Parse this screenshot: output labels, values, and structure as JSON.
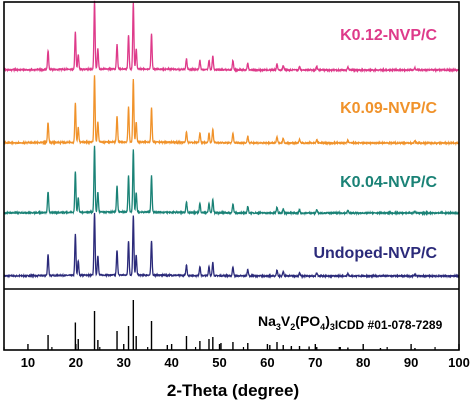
{
  "chart_data": {
    "type": "line",
    "title": "",
    "xlabel": "2-Theta (degree)",
    "ylabel": "",
    "xlim": [
      5,
      100
    ],
    "x_ticks": [
      10,
      20,
      30,
      40,
      50,
      60,
      70,
      80,
      90,
      100
    ],
    "grid": false,
    "legend": "inline labels beside each trace",
    "reference": {
      "label_main": "Na",
      "label_sub1": "3",
      "label_mid1": "V",
      "label_sub2": "2",
      "label_mid2": "(PO",
      "label_sub3": "4",
      "label_mid3": ")",
      "label_sub4": "3",
      "label_code": "ICDD #01-078-7289",
      "color": "#000000",
      "peaks": [
        {
          "x": 14.2,
          "h": 0.3
        },
        {
          "x": 19.9,
          "h": 0.55
        },
        {
          "x": 20.5,
          "h": 0.22
        },
        {
          "x": 23.9,
          "h": 0.78
        },
        {
          "x": 24.6,
          "h": 0.2
        },
        {
          "x": 28.6,
          "h": 0.38
        },
        {
          "x": 31.0,
          "h": 0.48
        },
        {
          "x": 32.0,
          "h": 1.0
        },
        {
          "x": 32.6,
          "h": 0.28
        },
        {
          "x": 35.8,
          "h": 0.58
        },
        {
          "x": 39.1,
          "h": 0.1
        },
        {
          "x": 43.1,
          "h": 0.28
        },
        {
          "x": 45.9,
          "h": 0.18
        },
        {
          "x": 47.8,
          "h": 0.22
        },
        {
          "x": 48.6,
          "h": 0.26
        },
        {
          "x": 50.3,
          "h": 0.14
        },
        {
          "x": 52.8,
          "h": 0.16
        },
        {
          "x": 55.9,
          "h": 0.14
        },
        {
          "x": 60.5,
          "h": 0.1
        },
        {
          "x": 62.0,
          "h": 0.16
        },
        {
          "x": 63.3,
          "h": 0.1
        },
        {
          "x": 65.0,
          "h": 0.08
        },
        {
          "x": 66.7,
          "h": 0.08
        },
        {
          "x": 68.7,
          "h": 0.07
        },
        {
          "x": 70.3,
          "h": 0.06
        },
        {
          "x": 75.2,
          "h": 0.06
        },
        {
          "x": 76.8,
          "h": 0.05
        },
        {
          "x": 83.6,
          "h": 0.04
        },
        {
          "x": 90.8,
          "h": 0.04
        }
      ]
    },
    "series": [
      {
        "name": "Undoped-NVP/C",
        "color": "#2b2a7a",
        "peaks": [
          {
            "x": 14.2,
            "h": 0.32
          },
          {
            "x": 19.9,
            "h": 0.62
          },
          {
            "x": 20.5,
            "h": 0.22
          },
          {
            "x": 23.9,
            "h": 0.95
          },
          {
            "x": 24.6,
            "h": 0.3
          },
          {
            "x": 28.6,
            "h": 0.38
          },
          {
            "x": 31.0,
            "h": 0.52
          },
          {
            "x": 32.0,
            "h": 0.9
          },
          {
            "x": 32.6,
            "h": 0.3
          },
          {
            "x": 35.8,
            "h": 0.52
          },
          {
            "x": 43.1,
            "h": 0.16
          },
          {
            "x": 45.9,
            "h": 0.14
          },
          {
            "x": 47.8,
            "h": 0.14
          },
          {
            "x": 48.6,
            "h": 0.2
          },
          {
            "x": 52.8,
            "h": 0.14
          },
          {
            "x": 55.9,
            "h": 0.1
          },
          {
            "x": 62.0,
            "h": 0.09
          },
          {
            "x": 63.3,
            "h": 0.07
          },
          {
            "x": 66.7,
            "h": 0.05
          },
          {
            "x": 70.3,
            "h": 0.05
          },
          {
            "x": 76.8,
            "h": 0.04
          },
          {
            "x": 90.8,
            "h": 0.03
          }
        ]
      },
      {
        "name": "K0.04-NVP/C",
        "color": "#1a8276",
        "peaks": [
          {
            "x": 14.2,
            "h": 0.32
          },
          {
            "x": 19.9,
            "h": 0.62
          },
          {
            "x": 20.5,
            "h": 0.22
          },
          {
            "x": 23.9,
            "h": 1.0
          },
          {
            "x": 24.6,
            "h": 0.3
          },
          {
            "x": 28.6,
            "h": 0.4
          },
          {
            "x": 31.0,
            "h": 0.55
          },
          {
            "x": 32.0,
            "h": 0.95
          },
          {
            "x": 32.6,
            "h": 0.3
          },
          {
            "x": 35.8,
            "h": 0.55
          },
          {
            "x": 43.1,
            "h": 0.16
          },
          {
            "x": 45.9,
            "h": 0.14
          },
          {
            "x": 47.8,
            "h": 0.14
          },
          {
            "x": 48.6,
            "h": 0.2
          },
          {
            "x": 52.8,
            "h": 0.14
          },
          {
            "x": 55.9,
            "h": 0.1
          },
          {
            "x": 62.0,
            "h": 0.09
          },
          {
            "x": 63.3,
            "h": 0.07
          },
          {
            "x": 66.7,
            "h": 0.05
          },
          {
            "x": 70.3,
            "h": 0.05
          },
          {
            "x": 76.8,
            "h": 0.04
          },
          {
            "x": 90.8,
            "h": 0.03
          }
        ]
      },
      {
        "name": "K0.09-NVP/C",
        "color": "#f0922a",
        "peaks": [
          {
            "x": 14.2,
            "h": 0.3
          },
          {
            "x": 19.9,
            "h": 0.58
          },
          {
            "x": 20.5,
            "h": 0.22
          },
          {
            "x": 23.9,
            "h": 0.98
          },
          {
            "x": 24.6,
            "h": 0.3
          },
          {
            "x": 28.6,
            "h": 0.38
          },
          {
            "x": 31.0,
            "h": 0.52
          },
          {
            "x": 32.0,
            "h": 0.92
          },
          {
            "x": 32.6,
            "h": 0.3
          },
          {
            "x": 35.8,
            "h": 0.5
          },
          {
            "x": 43.1,
            "h": 0.16
          },
          {
            "x": 45.9,
            "h": 0.14
          },
          {
            "x": 47.8,
            "h": 0.14
          },
          {
            "x": 48.6,
            "h": 0.2
          },
          {
            "x": 52.8,
            "h": 0.14
          },
          {
            "x": 55.9,
            "h": 0.1
          },
          {
            "x": 62.0,
            "h": 0.09
          },
          {
            "x": 63.3,
            "h": 0.07
          },
          {
            "x": 66.7,
            "h": 0.05
          },
          {
            "x": 70.3,
            "h": 0.05
          },
          {
            "x": 76.8,
            "h": 0.04
          },
          {
            "x": 90.8,
            "h": 0.03
          }
        ]
      },
      {
        "name": "K0.12-NVP/C",
        "color": "#de3a8a",
        "peaks": [
          {
            "x": 14.2,
            "h": 0.28
          },
          {
            "x": 19.9,
            "h": 0.55
          },
          {
            "x": 20.5,
            "h": 0.22
          },
          {
            "x": 23.9,
            "h": 1.0
          },
          {
            "x": 24.6,
            "h": 0.3
          },
          {
            "x": 28.6,
            "h": 0.36
          },
          {
            "x": 31.0,
            "h": 0.5
          },
          {
            "x": 32.0,
            "h": 0.98
          },
          {
            "x": 32.6,
            "h": 0.3
          },
          {
            "x": 35.8,
            "h": 0.52
          },
          {
            "x": 43.1,
            "h": 0.16
          },
          {
            "x": 45.9,
            "h": 0.14
          },
          {
            "x": 47.8,
            "h": 0.14
          },
          {
            "x": 48.6,
            "h": 0.2
          },
          {
            "x": 52.8,
            "h": 0.14
          },
          {
            "x": 55.9,
            "h": 0.1
          },
          {
            "x": 62.0,
            "h": 0.09
          },
          {
            "x": 63.3,
            "h": 0.07
          },
          {
            "x": 66.7,
            "h": 0.05
          },
          {
            "x": 70.3,
            "h": 0.05
          },
          {
            "x": 76.8,
            "h": 0.04
          },
          {
            "x": 90.8,
            "h": 0.03
          }
        ]
      }
    ]
  }
}
